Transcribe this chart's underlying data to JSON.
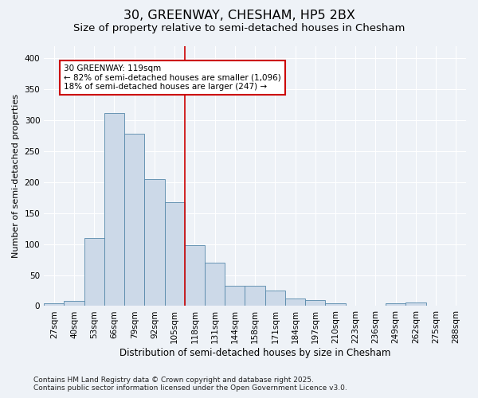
{
  "title": "30, GREENWAY, CHESHAM, HP5 2BX",
  "subtitle": "Size of property relative to semi-detached houses in Chesham",
  "xlabel": "Distribution of semi-detached houses by size in Chesham",
  "ylabel": "Number of semi-detached properties",
  "categories": [
    "27sqm",
    "40sqm",
    "53sqm",
    "66sqm",
    "79sqm",
    "92sqm",
    "105sqm",
    "118sqm",
    "131sqm",
    "144sqm",
    "158sqm",
    "171sqm",
    "184sqm",
    "197sqm",
    "210sqm",
    "223sqm",
    "236sqm",
    "249sqm",
    "262sqm",
    "275sqm",
    "288sqm"
  ],
  "values": [
    5,
    8,
    110,
    312,
    278,
    205,
    168,
    98,
    70,
    33,
    33,
    25,
    12,
    10,
    4,
    0,
    0,
    5,
    6,
    1,
    1
  ],
  "bar_color": "#ccd9e8",
  "bar_edge_color": "#5588aa",
  "vline_index": 7,
  "highlight_label": "30 GREENWAY: 119sqm",
  "annotation_line1": "← 82% of semi-detached houses are smaller (1,096)",
  "annotation_line2": "18% of semi-detached houses are larger (247) →",
  "annotation_box_facecolor": "#ffffff",
  "annotation_box_edgecolor": "#cc0000",
  "vline_color": "#cc0000",
  "ylim": [
    0,
    420
  ],
  "yticks": [
    0,
    50,
    100,
    150,
    200,
    250,
    300,
    350,
    400
  ],
  "background_color": "#eef2f7",
  "plot_background": "#eef2f7",
  "grid_color": "#ffffff",
  "footer_line1": "Contains HM Land Registry data © Crown copyright and database right 2025.",
  "footer_line2": "Contains public sector information licensed under the Open Government Licence v3.0.",
  "title_fontsize": 11.5,
  "subtitle_fontsize": 9.5,
  "axis_label_fontsize": 8.5,
  "tick_fontsize": 7.5,
  "annotation_fontsize": 7.5,
  "footer_fontsize": 6.5,
  "ylabel_fontsize": 8
}
